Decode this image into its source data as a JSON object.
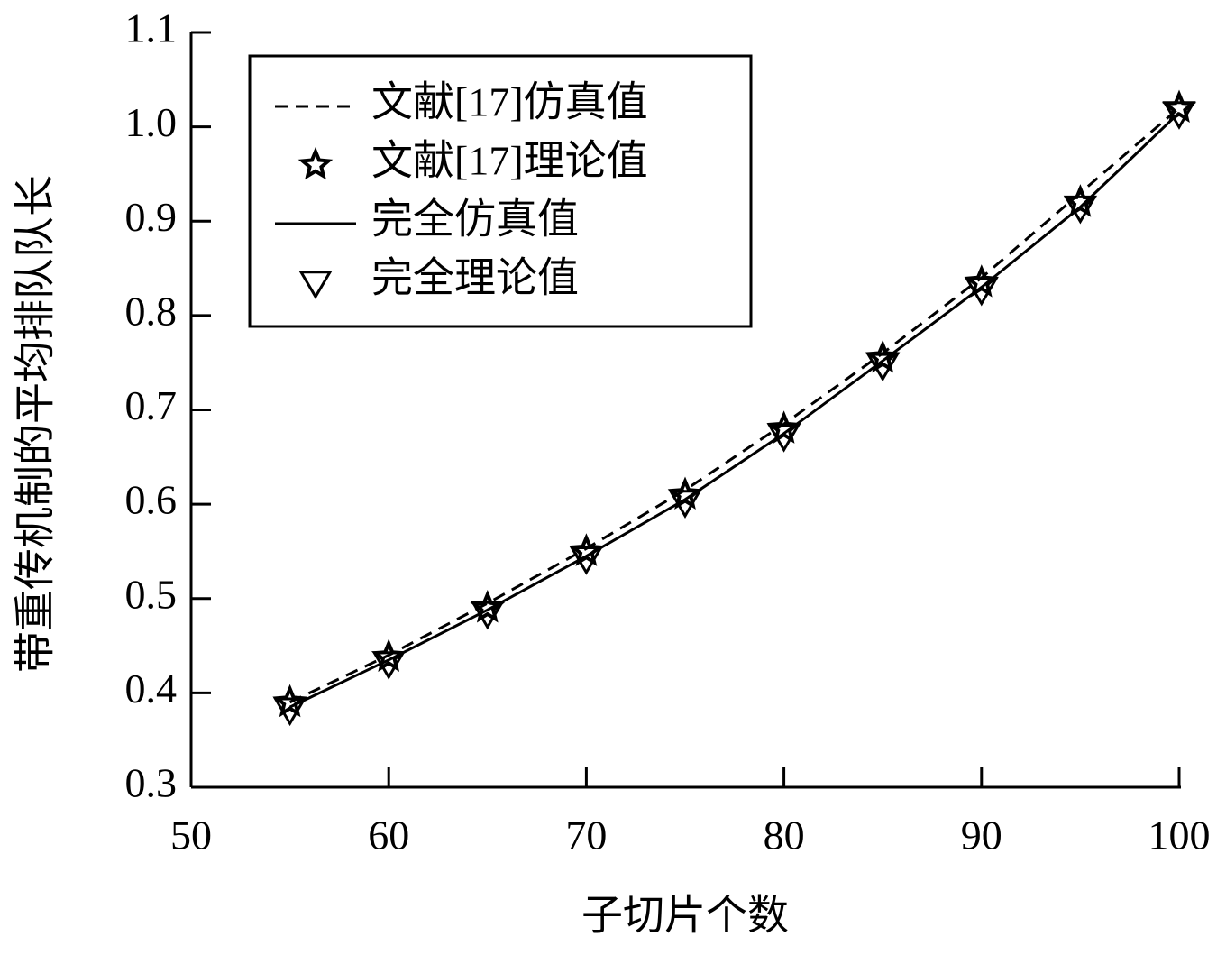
{
  "chart_data": {
    "type": "line",
    "x_label": "子切片个数",
    "y_label": "带重传机制的平均排队队长",
    "x": [
      55,
      60,
      65,
      70,
      75,
      80,
      85,
      90,
      95,
      100
    ],
    "series": [
      {
        "name": "文献[17]仿真值",
        "color": "#000000",
        "line": "dashed",
        "marker": "none",
        "values": [
          0.39,
          0.44,
          0.495,
          0.553,
          0.615,
          0.685,
          0.76,
          0.84,
          0.93,
          1.02
        ]
      },
      {
        "name": "文献[17]理论值",
        "color": "#000000",
        "line": "none",
        "marker": "star",
        "values": [
          0.39,
          0.438,
          0.49,
          0.55,
          0.61,
          0.68,
          0.755,
          0.835,
          0.92,
          1.02
        ]
      },
      {
        "name": "完全仿真值",
        "color": "#000000",
        "line": "solid",
        "marker": "none",
        "values": [
          0.385,
          0.435,
          0.488,
          0.545,
          0.605,
          0.675,
          0.752,
          0.83,
          0.915,
          1.015
        ]
      },
      {
        "name": "完全理论值",
        "color": "#000000",
        "line": "none",
        "marker": "triangle-down",
        "values": [
          0.383,
          0.432,
          0.485,
          0.543,
          0.603,
          0.673,
          0.748,
          0.828,
          0.915,
          1.015
        ]
      }
    ],
    "xlim": [
      50,
      100
    ],
    "xticks": [
      50,
      60,
      70,
      80,
      90,
      100
    ],
    "ylim": [
      0.3,
      1.1
    ],
    "yticks": [
      0.3,
      0.4,
      0.5,
      0.6,
      0.7,
      0.8,
      0.9,
      {
        "value": 1,
        "label": "1.0"
      },
      1.1
    ],
    "legend": "upper-left"
  }
}
